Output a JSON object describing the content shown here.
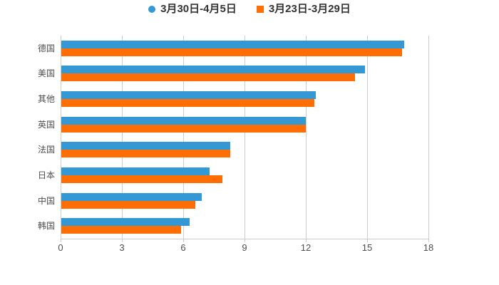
{
  "chart_data": {
    "type": "bar",
    "orientation": "horizontal",
    "title": "",
    "xlabel": "",
    "ylabel": "",
    "xlim": [
      0,
      18
    ],
    "xticks": [
      0,
      3,
      6,
      9,
      12,
      15,
      18
    ],
    "grid": true,
    "legend_position": "top-center",
    "categories": [
      "德国",
      "美国",
      "其他",
      "英国",
      "法国",
      "日本",
      "中国",
      "韩国"
    ],
    "series": [
      {
        "name": "3月30日-4月5日",
        "color": "#3498d4",
        "marker": "circle",
        "values": [
          16.8,
          14.9,
          12.5,
          12.0,
          8.3,
          7.3,
          6.9,
          6.3
        ]
      },
      {
        "name": "3月23日-3月29日",
        "color": "#ff6e05",
        "marker": "square",
        "values": [
          16.7,
          14.4,
          12.4,
          12.0,
          8.3,
          7.9,
          6.6,
          5.9
        ]
      }
    ]
  }
}
